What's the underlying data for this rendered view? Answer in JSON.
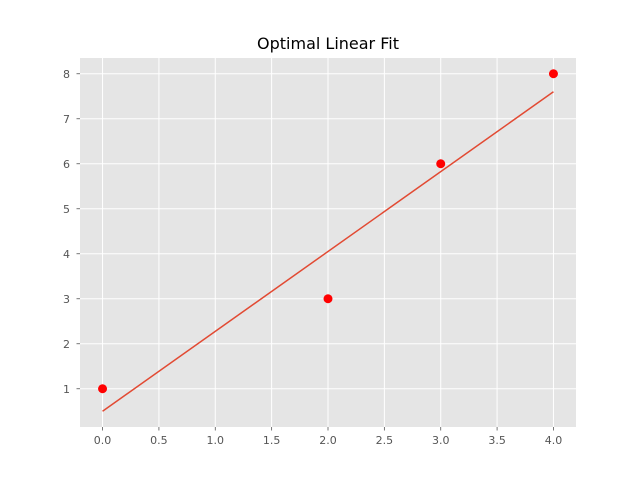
{
  "chart_data": {
    "type": "scatter",
    "title": "Optimal Linear Fit",
    "xlabel": "",
    "ylabel": "",
    "xlim": [
      -0.2,
      4.2
    ],
    "ylim": [
      0.15,
      8.35
    ],
    "x_ticks": [
      0.0,
      0.5,
      1.0,
      1.5,
      2.0,
      2.5,
      3.0,
      3.5,
      4.0
    ],
    "x_tick_labels": [
      "0.0",
      "0.5",
      "1.0",
      "1.5",
      "2.0",
      "2.5",
      "3.0",
      "3.5",
      "4.0"
    ],
    "y_ticks": [
      1,
      2,
      3,
      4,
      5,
      6,
      7,
      8
    ],
    "y_tick_labels": [
      "1",
      "2",
      "3",
      "4",
      "5",
      "6",
      "7",
      "8"
    ],
    "grid": true,
    "background_color": "#e5e5e5",
    "points": {
      "x": [
        0,
        2,
        3,
        4
      ],
      "y": [
        1,
        3,
        6,
        8
      ],
      "color": "#ff0000"
    },
    "fit_line": {
      "x": [
        0,
        4
      ],
      "y": [
        0.5,
        7.6
      ],
      "color": "#e24a33"
    }
  }
}
